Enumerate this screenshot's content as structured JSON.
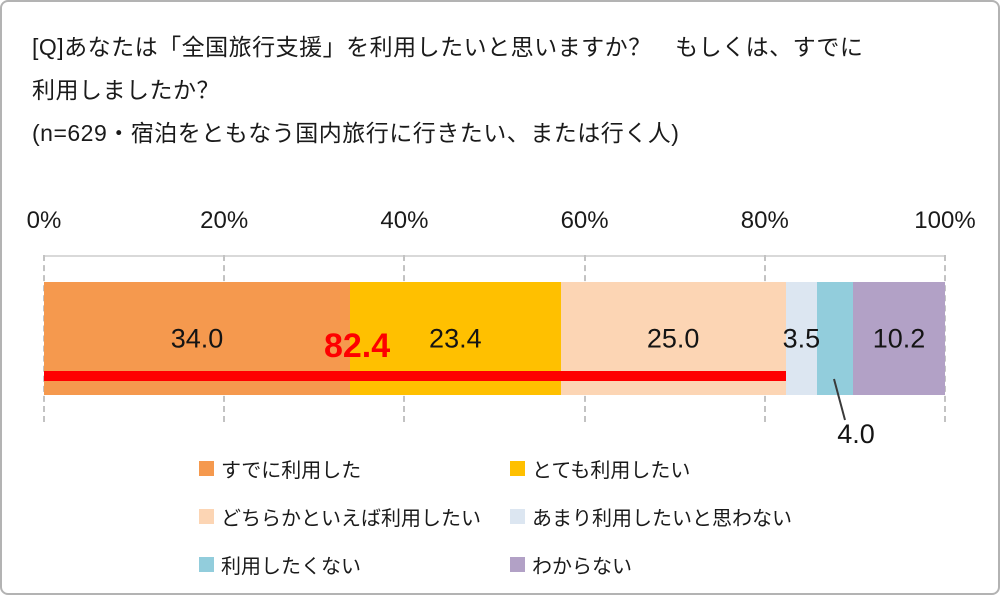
{
  "title": {
    "line1": "[Q]あなたは「全国旅行支援」を利用したいと思いますか？　もしくは、すでに",
    "line2": "利用しましたか？",
    "line3": "(n=629・宿泊をともなう国内旅行に行きたい、または行く人)"
  },
  "chart_data": {
    "type": "bar",
    "subtype": "horizontal-stacked-100percent",
    "title": "[Q]あなたは「全国旅行支援」を利用したいと思いますか？　もしくは、すでに利用しましたか？",
    "sample_note": "(n=629・宿泊をともなう国内旅行に行きたい、または行く人)",
    "n": 629,
    "xlim": [
      0,
      100
    ],
    "x_ticks": [
      "0%",
      "20%",
      "40%",
      "60%",
      "80%",
      "100%"
    ],
    "grid": "dashed-vertical",
    "legend_position": "bottom-two-columns",
    "segments": [
      {
        "label": "すでに利用した",
        "value": 34.0,
        "value_label": "34.0",
        "color": "#F5994E",
        "label_position": "inside"
      },
      {
        "label": "とても利用したい",
        "value": 23.4,
        "value_label": "23.4",
        "color": "#FFC000",
        "label_position": "inside"
      },
      {
        "label": "どちらかといえば利用したい",
        "value": 25.0,
        "value_label": "25.0",
        "color": "#FCD5B4",
        "label_position": "inside"
      },
      {
        "label": "あまり利用したいと思わない",
        "value": 3.5,
        "value_label": "3.5",
        "color": "#DCE6F1",
        "label_position": "inside"
      },
      {
        "label": "利用したくない",
        "value": 4.0,
        "value_label": "4.0",
        "color": "#92CDDC",
        "label_position": "callout-below"
      },
      {
        "label": "わからない",
        "value": 10.2,
        "value_label": "10.2",
        "color": "#B2A1C6",
        "label_position": "inside"
      }
    ],
    "annotation": {
      "text": "82.4",
      "value": 82.4,
      "color": "#FE0000",
      "style": "bold red value with thick red underline spanning first three segments",
      "sum_of": [
        "すでに利用した",
        "とても利用したい",
        "どちらかといえば利用したい"
      ]
    }
  }
}
